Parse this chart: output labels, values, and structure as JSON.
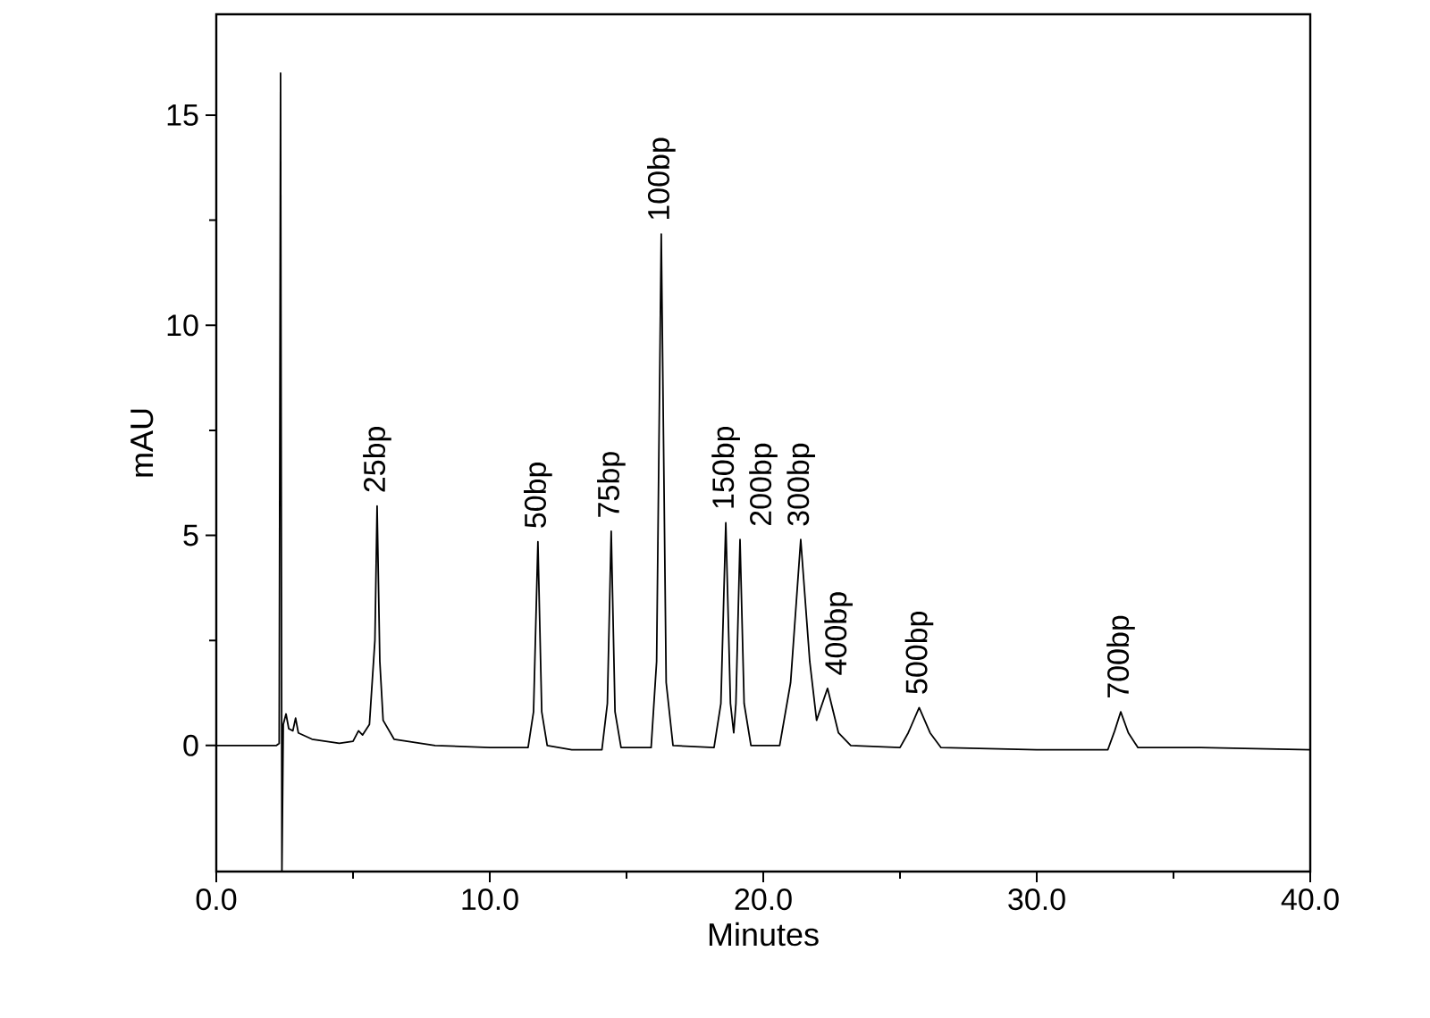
{
  "chart_data": {
    "type": "line",
    "xlabel": "Minutes",
    "ylabel": "mAU",
    "x": [
      0,
      2.2,
      2.3,
      2.35,
      2.4,
      2.45,
      2.55,
      2.65,
      2.8,
      2.9,
      3.0,
      3.5,
      4.5,
      5.0,
      5.2,
      5.35,
      5.6,
      5.8,
      5.88,
      5.98,
      6.1,
      6.5,
      8,
      10,
      11.4,
      11.6,
      11.76,
      11.9,
      12.1,
      13,
      14.1,
      14.3,
      14.44,
      14.58,
      14.8,
      15.9,
      16.1,
      16.27,
      16.45,
      16.7,
      18.2,
      18.45,
      18.63,
      18.8,
      18.92,
      19.0,
      19.15,
      19.3,
      19.55,
      20.6,
      21.0,
      21.37,
      21.7,
      21.95,
      22.35,
      22.75,
      23.2,
      25.0,
      25.3,
      25.7,
      26.1,
      26.5,
      30,
      32.6,
      32.85,
      33.07,
      33.35,
      33.7,
      36,
      40
    ],
    "series": [
      {
        "color": "#000000",
        "values": [
          0,
          0,
          0.05,
          16.0,
          -3.0,
          0.5,
          0.75,
          0.4,
          0.35,
          0.65,
          0.3,
          0.15,
          0.05,
          0.1,
          0.35,
          0.25,
          0.5,
          2.5,
          5.7,
          2.0,
          0.6,
          0.15,
          0.0,
          -0.05,
          -0.05,
          0.8,
          4.85,
          0.8,
          0.0,
          -0.1,
          -0.1,
          1.0,
          5.1,
          0.8,
          -0.05,
          -0.05,
          2.0,
          12.17,
          1.5,
          0.0,
          -0.05,
          1.0,
          5.3,
          1.0,
          0.3,
          1.0,
          4.9,
          1.0,
          0.0,
          0.0,
          1.5,
          4.9,
          2.0,
          0.6,
          1.36,
          0.3,
          0.0,
          -0.05,
          0.3,
          0.9,
          0.3,
          -0.05,
          -0.1,
          -0.1,
          0.35,
          0.8,
          0.3,
          -0.05,
          -0.05,
          -0.1
        ]
      }
    ],
    "xlim": [
      0,
      40
    ],
    "ylim": [
      -3.0,
      17.4
    ],
    "xticks": [
      {
        "value": 0,
        "label": "0.0"
      },
      {
        "value": 10,
        "label": "10.0"
      },
      {
        "value": 20,
        "label": "20.0"
      },
      {
        "value": 30,
        "label": "30.0"
      },
      {
        "value": 40,
        "label": "40.0"
      }
    ],
    "yticks": [
      0,
      5,
      10,
      15
    ],
    "grid": false,
    "marker": "none",
    "line_style": "solid",
    "annotations": [
      {
        "text": "25bp",
        "x": 5.88,
        "y": 5.7
      },
      {
        "text": "50bp",
        "x": 11.76,
        "y": 4.85
      },
      {
        "text": "75bp",
        "x": 14.44,
        "y": 5.1
      },
      {
        "text": "100bp",
        "x": 16.27,
        "y": 12.17
      },
      {
        "text": "150bp",
        "x": 18.63,
        "y": 5.3
      },
      {
        "text": "200bp",
        "x": 19.15,
        "y": 4.9
      },
      {
        "text": "300bp",
        "x": 21.37,
        "y": 4.9
      },
      {
        "text": "400bp",
        "x": 22.35,
        "y": 1.36
      },
      {
        "text": "500bp",
        "x": 25.7,
        "y": 0.9
      },
      {
        "text": "700bp",
        "x": 33.07,
        "y": 0.8
      }
    ]
  }
}
